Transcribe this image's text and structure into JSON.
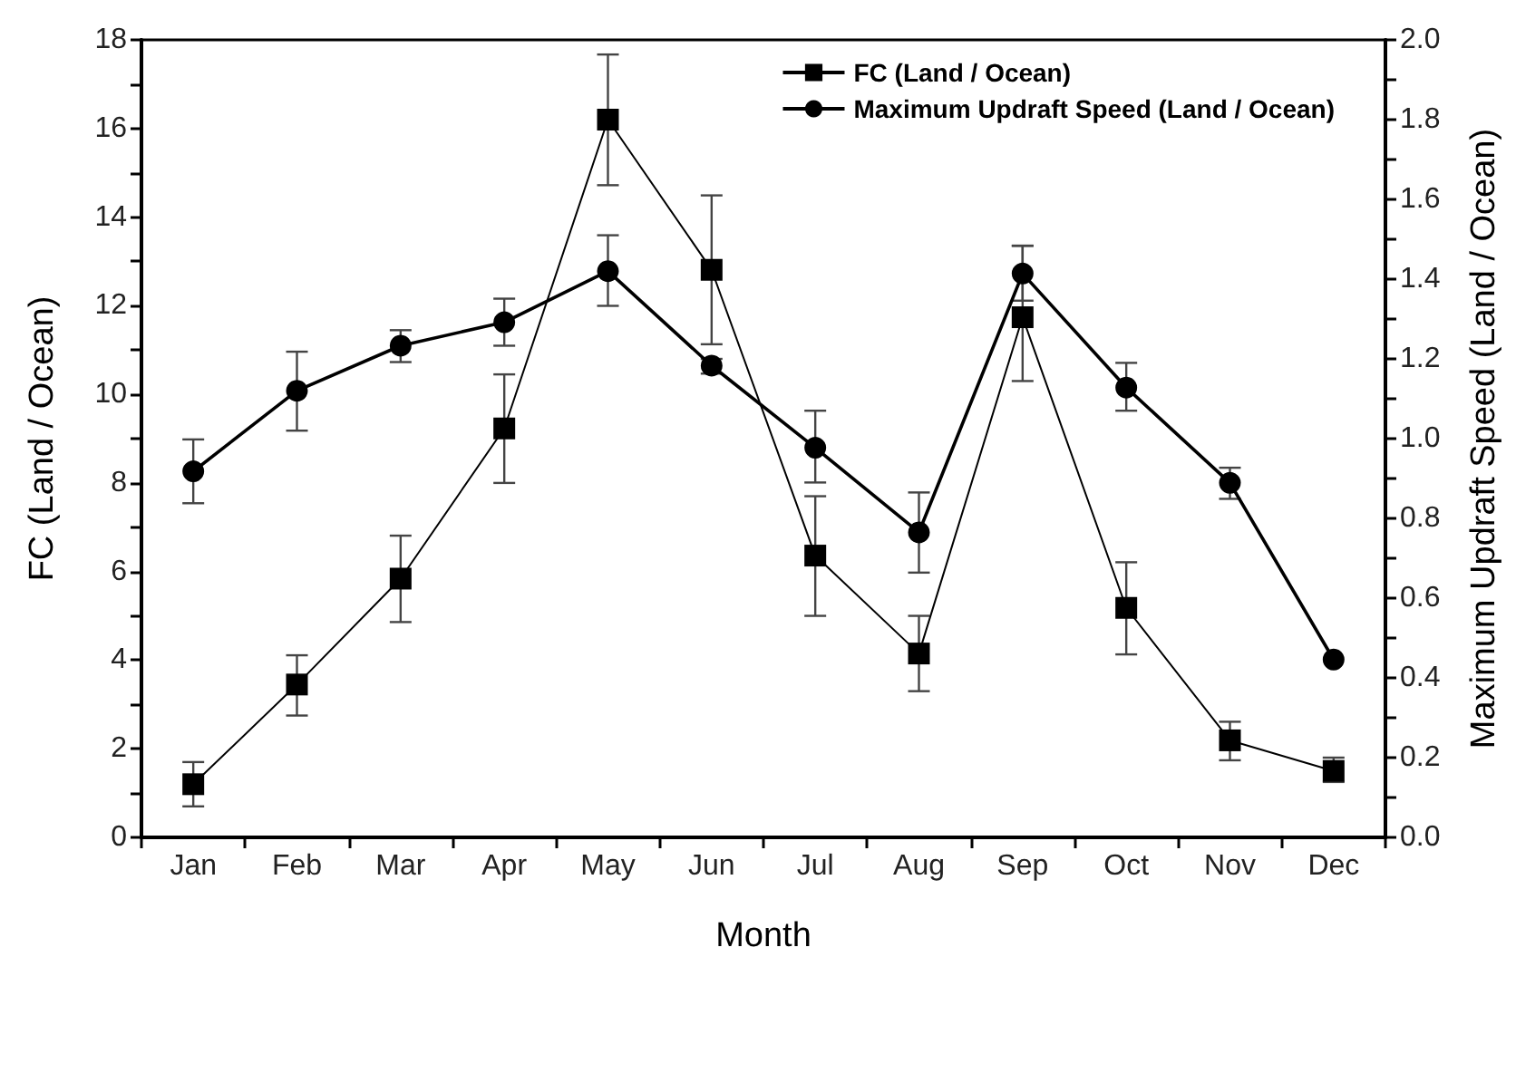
{
  "chart_data": {
    "type": "line",
    "xlabel": "Month",
    "ylabel": "FC (Land / Ocean)",
    "y2label": "Maximum Updraft Speed (Land / Ocean)",
    "categories": [
      "Jan",
      "Feb",
      "Mar",
      "Apr",
      "May",
      "Jun",
      "Jul",
      "Aug",
      "Sep",
      "Oct",
      "Nov",
      "Dec"
    ],
    "series": [
      {
        "name": "FC (Land / Ocean)",
        "color": "#000000",
        "marker": "square",
        "values": [
          1.2,
          3.45,
          5.84,
          9.23,
          16.2,
          12.81,
          6.36,
          4.15,
          11.74,
          5.18,
          2.19,
          1.5
        ],
        "errors": [
          [
            0.7,
            1.7
          ],
          [
            2.75,
            4.11
          ],
          [
            4.86,
            6.81
          ],
          [
            8.0,
            10.45
          ],
          [
            14.72,
            17.67
          ],
          [
            11.13,
            14.49
          ],
          [
            5.0,
            7.7
          ],
          [
            3.3,
            5.0
          ],
          [
            10.3,
            13.35
          ],
          [
            4.13,
            6.21
          ],
          [
            1.74,
            2.61
          ],
          [
            1.25,
            1.8
          ]
        ]
      },
      {
        "name": "Maximum Updraft Speed (Land / Ocean)",
        "color": "#000000",
        "marker": "circle",
        "axis": "y2",
        "values": [
          0.918,
          1.12,
          1.233,
          1.292,
          1.42,
          1.183,
          0.977,
          0.765,
          1.414,
          1.128,
          0.889,
          0.446
        ],
        "errors": [
          [
            0.838,
            0.998
          ],
          [
            1.02,
            1.218
          ],
          [
            1.192,
            1.272
          ],
          [
            1.233,
            1.351
          ],
          [
            1.333,
            1.51
          ],
          [
            1.163,
            1.2
          ],
          [
            0.89,
            1.07
          ],
          [
            0.664,
            0.865
          ],
          [
            1.346,
            1.484
          ],
          [
            1.07,
            1.19
          ],
          [
            0.849,
            0.927
          ],
          null
        ]
      }
    ],
    "ylim": [
      0,
      18
    ],
    "yticks": [
      0,
      {
        "value": 1,
        "label": null
      },
      2,
      {
        "value": 3,
        "label": null
      },
      4,
      {
        "value": 5,
        "label": null
      },
      6,
      {
        "value": 7,
        "label": null
      },
      8,
      {
        "value": 9,
        "label": null
      },
      10,
      {
        "value": 11,
        "label": null
      },
      12,
      {
        "value": 13,
        "label": null
      },
      14,
      {
        "value": 15,
        "label": null
      },
      16,
      {
        "value": 17,
        "label": null
      },
      18
    ],
    "y2lim": [
      0,
      2
    ],
    "y2ticks": [
      {
        "value": 0,
        "label": "0.0"
      },
      {
        "value": 0.1,
        "label": null
      },
      {
        "value": 0.2,
        "label": "0.2"
      },
      {
        "value": 0.3,
        "label": null
      },
      {
        "value": 0.4,
        "label": "0.4"
      },
      {
        "value": 0.5,
        "label": null
      },
      {
        "value": 0.6,
        "label": "0.6"
      },
      {
        "value": 0.7,
        "label": null
      },
      {
        "value": 0.8,
        "label": "0.8"
      },
      {
        "value": 0.9,
        "label": null
      },
      {
        "value": 1,
        "label": "1.0"
      },
      {
        "value": 1.1,
        "label": null
      },
      {
        "value": 1.2,
        "label": "1.2"
      },
      {
        "value": 1.3,
        "label": null
      },
      {
        "value": 1.4,
        "label": "1.4"
      },
      {
        "value": 1.5,
        "label": null
      },
      {
        "value": 1.6,
        "label": "1.6"
      },
      {
        "value": 1.7,
        "label": null
      },
      {
        "value": 1.8,
        "label": "1.8"
      },
      {
        "value": 1.9,
        "label": null
      },
      {
        "value": 2,
        "label": "2.0"
      }
    ],
    "grid": false,
    "legend": "top right"
  }
}
